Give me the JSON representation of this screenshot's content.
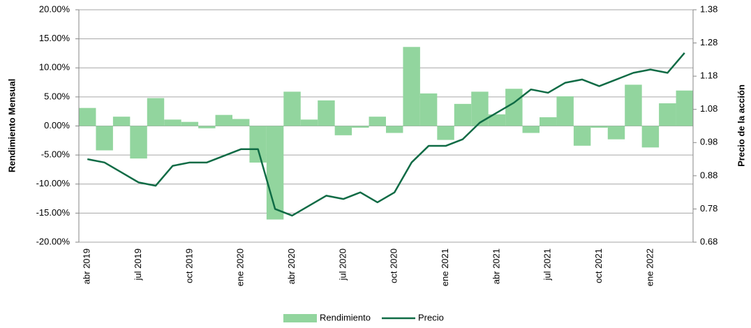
{
  "chart_data": {
    "type": "bar_line",
    "categories": [
      "abr 2019",
      null,
      null,
      "jul 2019",
      null,
      null,
      "oct 2019",
      null,
      null,
      "ene 2020",
      null,
      null,
      "abr 2020",
      null,
      null,
      "jul 2020",
      null,
      null,
      "oct 2020",
      null,
      null,
      "ene 2021",
      null,
      null,
      "abr 2021",
      null,
      null,
      "jul 2021",
      null,
      null,
      "oct 2021",
      null,
      null,
      "ene 2022",
      null,
      null
    ],
    "series": [
      {
        "name": "Rendimiento",
        "type": "bar",
        "color": "#92d59e",
        "axis": "y",
        "values": [
          3.1,
          -4.2,
          1.6,
          -5.6,
          4.8,
          1.1,
          0.7,
          -0.4,
          1.9,
          1.2,
          -6.3,
          -16.1,
          5.9,
          1.1,
          4.4,
          -1.6,
          -0.3,
          1.6,
          -1.2,
          13.6,
          5.6,
          -2.4,
          3.8,
          5.9,
          2.0,
          6.4,
          -1.2,
          1.5,
          5.1,
          -3.4,
          -0.3,
          -2.3,
          7.1,
          -3.7,
          3.9,
          6.1
        ]
      },
      {
        "name": "Precio",
        "type": "line",
        "color": "#0f6b45",
        "axis": "y2",
        "values": [
          0.93,
          0.92,
          0.89,
          0.86,
          0.85,
          0.91,
          0.92,
          0.92,
          0.94,
          0.96,
          0.96,
          0.78,
          0.76,
          0.79,
          0.82,
          0.81,
          0.83,
          0.8,
          0.83,
          0.92,
          0.97,
          0.97,
          0.99,
          1.04,
          1.07,
          1.1,
          1.14,
          1.13,
          1.16,
          1.17,
          1.15,
          1.17,
          1.19,
          1.2,
          1.19,
          1.25
        ]
      }
    ],
    "ylabel": "Rendimiento Mensual",
    "y2label": "Precio de la acción",
    "ylim": [
      -20,
      20
    ],
    "yticks": [
      {
        "value": -20,
        "label": "-20.00%"
      },
      {
        "value": -15,
        "label": "-15.00%"
      },
      {
        "value": -10,
        "label": "-10.00%"
      },
      {
        "value": -5,
        "label": "-5.00%"
      },
      {
        "value": 0,
        "label": "0.00%"
      },
      {
        "value": 5,
        "label": "5.00%"
      },
      {
        "value": 10,
        "label": "10.00%"
      },
      {
        "value": 15,
        "label": "15.00%"
      },
      {
        "value": 20,
        "label": "20.00%"
      }
    ],
    "y2lim": [
      0.68,
      1.38
    ],
    "y2ticks": [
      0.68,
      0.78,
      0.88,
      0.98,
      1.08,
      1.18,
      1.28,
      1.38
    ],
    "grid": true,
    "legend": "bottom"
  }
}
